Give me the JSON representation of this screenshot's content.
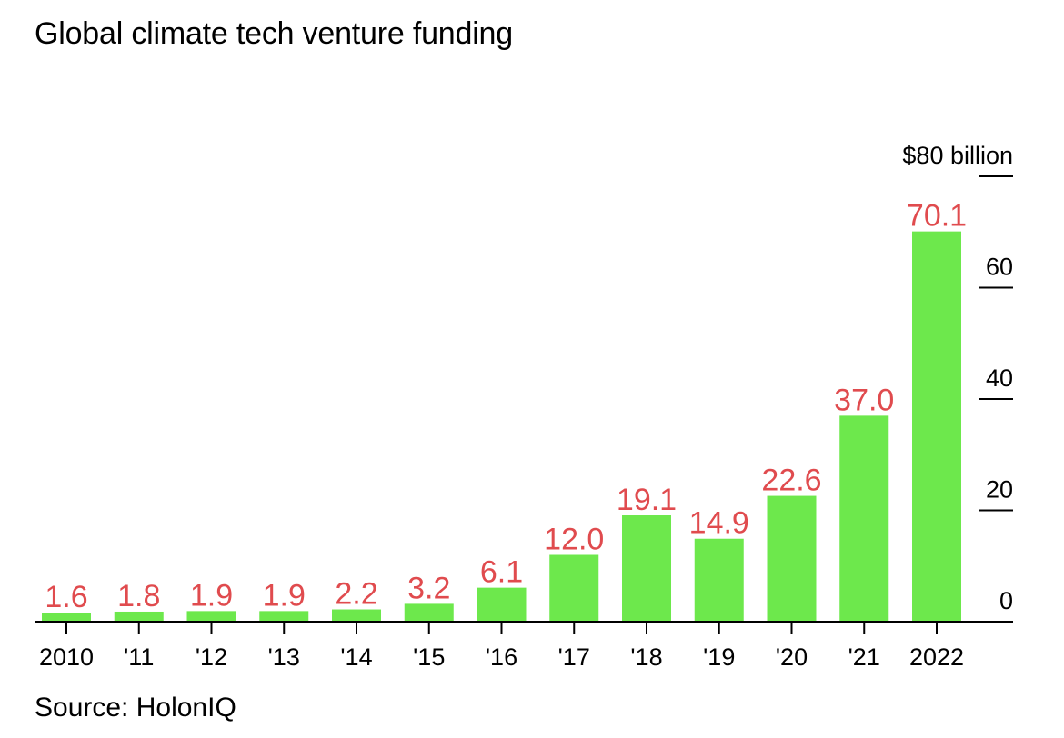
{
  "title": "Global climate tech venture funding",
  "source": "Source: HolonIQ",
  "colors": {
    "bar": "#6de84c",
    "label": "#e04b4e",
    "axis": "#000000"
  },
  "chart_data": {
    "type": "bar",
    "title": "Global climate tech venture funding",
    "categories": [
      "2010",
      "'11",
      "'12",
      "'13",
      "'14",
      "'15",
      "'16",
      "'17",
      "'18",
      "'19",
      "'20",
      "'21",
      "2022"
    ],
    "values": [
      1.6,
      1.8,
      1.9,
      1.9,
      2.2,
      3.2,
      6.1,
      12.0,
      19.1,
      14.9,
      22.6,
      37.0,
      70.1
    ],
    "value_labels": [
      "1.6",
      "1.8",
      "1.9",
      "1.9",
      "2.2",
      "3.2",
      "6.1",
      "12.0",
      "19.1",
      "14.9",
      "22.6",
      "37.0",
      "70.1"
    ],
    "ylim": [
      0,
      80
    ],
    "y_ticks": [
      0,
      20,
      40,
      60,
      80
    ],
    "y_tick_labels": [
      "0",
      "20",
      "40",
      "60",
      "$80 billion"
    ],
    "y_axis_position": "right",
    "grid": false,
    "legend": "none"
  }
}
